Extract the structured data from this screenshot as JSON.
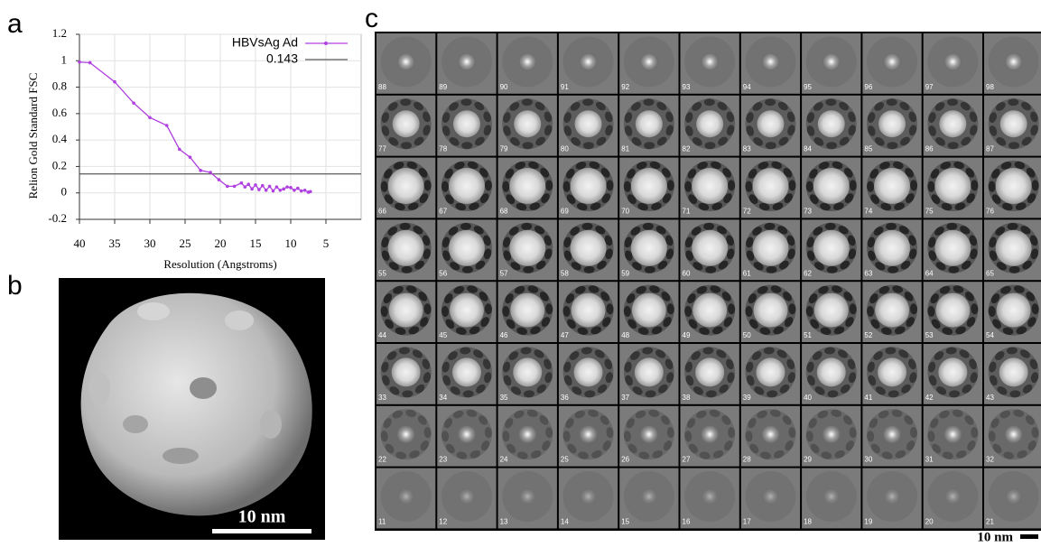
{
  "panels": {
    "a": {
      "label": "a"
    },
    "b": {
      "label": "b",
      "scale_bar": "10 nm"
    },
    "c": {
      "label": "c",
      "scale_bar": "10 nm",
      "rows": [
        [
          88,
          89,
          90,
          91,
          92,
          93,
          94,
          95,
          96,
          97,
          98
        ],
        [
          77,
          78,
          79,
          80,
          81,
          82,
          83,
          84,
          85,
          86,
          87
        ],
        [
          66,
          67,
          68,
          69,
          70,
          71,
          72,
          73,
          74,
          75,
          76
        ],
        [
          55,
          56,
          57,
          58,
          59,
          60,
          61,
          62,
          63,
          64,
          65
        ],
        [
          44,
          45,
          46,
          47,
          48,
          49,
          50,
          51,
          52,
          53,
          54
        ],
        [
          33,
          34,
          35,
          36,
          37,
          38,
          39,
          40,
          41,
          42,
          43
        ],
        [
          22,
          23,
          24,
          25,
          26,
          27,
          28,
          29,
          30,
          31,
          32
        ],
        [
          11,
          12,
          13,
          14,
          15,
          16,
          17,
          18,
          19,
          20,
          21
        ]
      ]
    }
  },
  "chart_data": {
    "type": "line",
    "x_label": "Resolution (Angstroms)",
    "y_label": "Relion Gold Standard FSC",
    "xlim": [
      40,
      0
    ],
    "xticks": [
      40,
      35,
      30,
      25,
      20,
      15,
      10,
      5
    ],
    "ylim": [
      -0.2,
      1.2
    ],
    "yticks": [
      -0.2,
      0,
      0.2,
      0.4,
      0.6,
      0.8,
      1,
      1.2
    ],
    "grid": true,
    "series": [
      {
        "name": "HBVsAg Ad",
        "color": "#b040e0",
        "x": [
          40,
          38.5,
          35,
          32.3,
          30,
          27.6,
          25.8,
          24.3,
          22.8,
          21.4,
          20.2,
          19,
          18,
          17,
          16.5,
          16,
          15.5,
          15,
          14.5,
          14,
          13.5,
          13,
          12.5,
          12,
          11.5,
          11,
          10.5,
          10,
          9.5,
          9,
          8.5,
          8,
          7.5,
          7.2
        ],
        "values": [
          0.99,
          0.985,
          0.84,
          0.68,
          0.57,
          0.51,
          0.33,
          0.27,
          0.17,
          0.155,
          0.1,
          0.05,
          0.05,
          0.075,
          0.045,
          0.065,
          0.03,
          0.06,
          0.025,
          0.055,
          0.02,
          0.05,
          0.015,
          0.045,
          0.02,
          0.03,
          0.045,
          0.04,
          0.02,
          0.035,
          0.015,
          0.02,
          0.005,
          0.01
        ]
      }
    ],
    "hlines": [
      {
        "name": "0.143",
        "value": 0.143,
        "color": "#333333"
      }
    ]
  }
}
